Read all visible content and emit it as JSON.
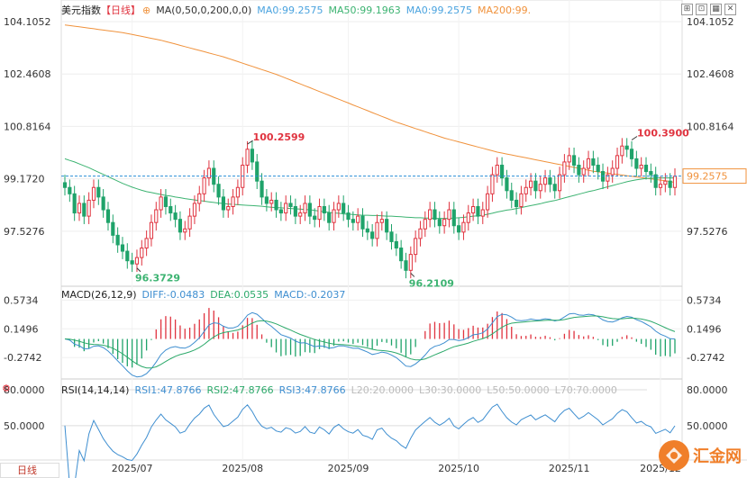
{
  "header": {
    "title": "美元指数",
    "period": "【日线】",
    "ma_params": "MA(0,50,0,200,0,0)",
    "ma_values": [
      {
        "label": "MA0:99.2575",
        "color": "#4aa3df"
      },
      {
        "label": "MA50:99.1963",
        "color": "#3cb371"
      },
      {
        "label": "MA0:99.2575",
        "color": "#4aa3df"
      },
      {
        "label": "MA200:99.",
        "color": "#f0923c"
      }
    ]
  },
  "macd_header": {
    "params": "MACD(26,12,9)",
    "diff": "DIFF:-0.0483",
    "dea": "DEA:0.0535",
    "macd": "MACD:-0.2037"
  },
  "rsi_header": {
    "params": "RSI(14,14,14)",
    "rsi1": "RSI1:47.8766",
    "rsi2": "RSI2:47.8766",
    "rsi3": "RSI3:47.8766",
    "l20": "L20:20.0000",
    "l30": "L30:30.0000",
    "l50": "L50:50.0000",
    "l70": "L70:70.0000"
  },
  "bottom_tab": "日线",
  "logo_text": "汇金网",
  "colors": {
    "up": "#e0333f",
    "down": "#1fa36a",
    "ma50": "#3cb371",
    "ma200": "#f0923c",
    "current": "#f0923c",
    "diff": "#3e8ed0",
    "dea": "#2ca96a"
  },
  "chart_data": [
    {
      "type": "candlestick",
      "name": "price",
      "y_ticks": [
        "104.1052",
        "102.4608",
        "100.8164",
        "99.1720",
        "97.5276"
      ],
      "y_tick_values": [
        104.1052,
        102.4608,
        100.8164,
        99.172,
        97.5276
      ],
      "ylim": [
        95.8,
        104.5
      ],
      "x_ticks": [
        "2025/07",
        "2025/08",
        "2025/09",
        "2025/10",
        "2025/11",
        "2025/12"
      ],
      "x_tick_index": [
        14,
        37,
        59,
        82,
        105,
        124
      ],
      "current_price": "99.2575",
      "current_value": 99.2575,
      "annotations": [
        {
          "text": "96.3729",
          "index": 15,
          "value": 96.3729,
          "kind": "low"
        },
        {
          "text": "100.2599",
          "index": 38,
          "value": 100.2599,
          "kind": "high"
        },
        {
          "text": "96.2109",
          "index": 72,
          "value": 96.2109,
          "kind": "low"
        },
        {
          "text": "100.3900",
          "index": 118,
          "value": 100.39,
          "kind": "high"
        }
      ],
      "close": [
        98.9,
        98.7,
        98.1,
        98.4,
        98.0,
        98.5,
        98.9,
        98.6,
        98.2,
        97.8,
        97.4,
        97.1,
        96.9,
        96.6,
        96.5,
        96.7,
        97.0,
        97.3,
        97.8,
        98.2,
        98.6,
        98.3,
        98.1,
        97.9,
        97.5,
        97.6,
        98.0,
        98.4,
        98.7,
        99.2,
        99.5,
        99.0,
        98.6,
        98.2,
        98.3,
        98.6,
        98.9,
        99.6,
        100.1,
        99.7,
        99.1,
        98.6,
        98.4,
        98.5,
        98.2,
        98.1,
        98.4,
        98.3,
        98.0,
        98.1,
        98.4,
        98.0,
        97.9,
        98.3,
        98.1,
        97.8,
        98.2,
        98.4,
        98.1,
        97.9,
        97.8,
        98.0,
        97.6,
        97.5,
        97.3,
        97.8,
        97.9,
        97.5,
        97.2,
        97.0,
        96.6,
        96.3,
        96.8,
        97.3,
        97.6,
        97.9,
        98.2,
        97.9,
        97.7,
        97.9,
        98.2,
        97.7,
        97.5,
        97.8,
        98.1,
        98.3,
        98.0,
        98.2,
        98.7,
        99.3,
        99.6,
        99.2,
        98.8,
        98.5,
        98.3,
        98.7,
        98.9,
        99.1,
        98.8,
        99.0,
        99.2,
        99.0,
        98.8,
        99.3,
        99.7,
        99.9,
        99.6,
        99.3,
        99.5,
        99.8,
        99.6,
        99.4,
        99.1,
        99.3,
        99.5,
        99.9,
        100.2,
        100.1,
        99.8,
        99.5,
        99.6,
        99.4,
        99.3,
        98.9,
        99.0,
        99.1,
        98.9,
        99.25
      ],
      "ma50": [
        99.8,
        99.75,
        99.7,
        99.64,
        99.58,
        99.52,
        99.45,
        99.38,
        99.31,
        99.24,
        99.17,
        99.1,
        99.03,
        98.97,
        98.91,
        98.86,
        98.81,
        98.77,
        98.74,
        98.71,
        98.68,
        98.65,
        98.63,
        98.6,
        98.58,
        98.55,
        98.53,
        98.51,
        98.49,
        98.47,
        98.45,
        98.43,
        98.41,
        98.4,
        98.38,
        98.37,
        98.36,
        98.35,
        98.34,
        98.33,
        98.32,
        98.31,
        98.29,
        98.28,
        98.27,
        98.26,
        98.25,
        98.24,
        98.23,
        98.22,
        98.21,
        98.2,
        98.18,
        98.16,
        98.14,
        98.12,
        98.1,
        98.09,
        98.07,
        98.06,
        98.05,
        98.04,
        98.03,
        98.03,
        98.02,
        98.02,
        98.01,
        98.0,
        98.0,
        97.99,
        97.98,
        97.97,
        97.96,
        97.95,
        97.95,
        97.94,
        97.94,
        97.93,
        97.93,
        97.93,
        97.93,
        97.94,
        97.95,
        97.96,
        97.98,
        98.0,
        98.01,
        98.03,
        98.06,
        98.09,
        98.13,
        98.16,
        98.19,
        98.21,
        98.24,
        98.27,
        98.3,
        98.33,
        98.36,
        98.39,
        98.43,
        98.46,
        98.49,
        98.53,
        98.57,
        98.61,
        98.65,
        98.69,
        98.73,
        98.77,
        98.8,
        98.84,
        98.88,
        98.92,
        98.96,
        99.0,
        99.04,
        99.08,
        99.11,
        99.14,
        99.16,
        99.18,
        99.19,
        99.2,
        99.2,
        99.2,
        99.2,
        99.2
      ],
      "ma200": [
        104.0,
        103.98,
        103.96,
        103.94,
        103.92,
        103.9,
        103.88,
        103.86,
        103.84,
        103.82,
        103.8,
        103.78,
        103.76,
        103.73,
        103.7,
        103.67,
        103.64,
        103.61,
        103.58,
        103.55,
        103.52,
        103.48,
        103.44,
        103.4,
        103.36,
        103.32,
        103.28,
        103.24,
        103.2,
        103.16,
        103.12,
        103.08,
        103.04,
        103.0,
        102.95,
        102.9,
        102.85,
        102.8,
        102.75,
        102.7,
        102.65,
        102.6,
        102.55,
        102.5,
        102.45,
        102.39,
        102.33,
        102.27,
        102.21,
        102.15,
        102.09,
        102.03,
        101.97,
        101.91,
        101.85,
        101.79,
        101.73,
        101.67,
        101.61,
        101.55,
        101.49,
        101.43,
        101.37,
        101.31,
        101.25,
        101.19,
        101.13,
        101.07,
        101.01,
        100.95,
        100.9,
        100.85,
        100.8,
        100.75,
        100.7,
        100.65,
        100.6,
        100.55,
        100.5,
        100.45,
        100.41,
        100.37,
        100.33,
        100.29,
        100.25,
        100.21,
        100.17,
        100.13,
        100.09,
        100.05,
        100.01,
        99.98,
        99.95,
        99.92,
        99.89,
        99.86,
        99.83,
        99.8,
        99.77,
        99.74,
        99.71,
        99.68,
        99.65,
        99.62,
        99.59,
        99.56,
        99.53,
        99.5,
        99.47,
        99.44,
        99.41,
        99.39,
        99.37,
        99.35,
        99.33,
        99.31,
        99.29,
        99.27,
        99.25,
        99.23,
        99.21,
        99.19,
        99.17,
        99.15,
        99.13,
        99.11,
        99.09,
        99.05
      ]
    },
    {
      "type": "bar+line",
      "name": "MACD",
      "y_ticks": [
        "0.5734",
        "0.1496",
        "-0.2742"
      ],
      "y_tick_values": [
        0.5734,
        0.1496,
        -0.2742
      ],
      "ylim": [
        -0.55,
        0.75
      ]
    },
    {
      "type": "line",
      "name": "RSI",
      "y_ticks": [
        "80.0000",
        "50.0000"
      ],
      "y_tick_values": [
        80,
        50
      ],
      "ylim": [
        22,
        86
      ]
    }
  ]
}
